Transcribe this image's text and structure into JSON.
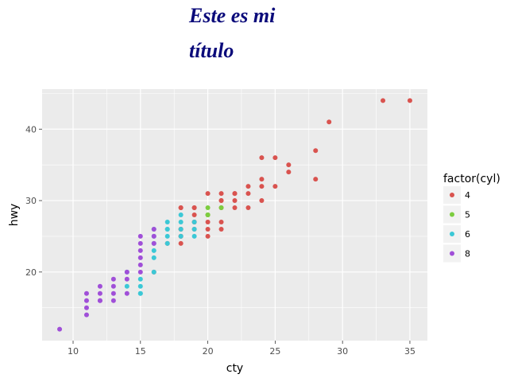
{
  "chart_data": {
    "type": "scatter",
    "title_lines": [
      "Este es mi",
      "título"
    ],
    "xlabel": "cty",
    "ylabel": "hwy",
    "xlim": [
      7.7,
      36.3
    ],
    "ylim": [
      10.4,
      45.6
    ],
    "xticks": [
      10,
      15,
      20,
      25,
      30,
      35
    ],
    "yticks": [
      20,
      30,
      40
    ],
    "grid": true,
    "legend": {
      "title": "factor(cyl)",
      "position": "right"
    },
    "series": [
      {
        "name": "4",
        "color": "#d9534f",
        "points": [
          [
            18,
            29
          ],
          [
            21,
            29
          ],
          [
            20,
            31
          ],
          [
            21,
            30
          ],
          [
            18,
            26
          ],
          [
            18,
            25
          ],
          [
            19,
            26
          ],
          [
            20,
            28
          ],
          [
            19,
            27
          ],
          [
            18,
            24
          ],
          [
            17,
            24
          ],
          [
            18,
            26
          ],
          [
            22,
            29
          ],
          [
            24,
            33
          ],
          [
            24,
            32
          ],
          [
            22,
            31
          ],
          [
            19,
            27
          ],
          [
            18,
            29
          ],
          [
            21,
            30
          ],
          [
            20,
            26
          ],
          [
            19,
            29
          ],
          [
            21,
            31
          ],
          [
            22,
            31
          ],
          [
            18,
            25
          ],
          [
            19,
            29
          ],
          [
            21,
            27
          ],
          [
            21,
            26
          ],
          [
            23,
            29
          ],
          [
            23,
            31
          ],
          [
            24,
            30
          ],
          [
            22,
            30
          ],
          [
            23,
            32
          ],
          [
            24,
            36
          ],
          [
            25,
            36
          ],
          [
            28,
            37
          ],
          [
            29,
            41
          ],
          [
            26,
            35
          ],
          [
            26,
            34
          ],
          [
            25,
            32
          ],
          [
            28,
            33
          ],
          [
            33,
            44
          ],
          [
            35,
            44
          ],
          [
            20,
            25
          ],
          [
            20,
            27
          ],
          [
            19,
            28
          ],
          [
            16,
            20
          ]
        ]
      },
      {
        "name": "5",
        "color": "#7ccd3f",
        "points": [
          [
            20,
            29
          ],
          [
            20,
            28
          ],
          [
            21,
            29
          ],
          [
            20,
            28
          ]
        ]
      },
      {
        "name": "6",
        "color": "#3bc8d6",
        "points": [
          [
            16,
            26
          ],
          [
            18,
            26
          ],
          [
            18,
            28
          ],
          [
            17,
            25
          ],
          [
            17,
            24
          ],
          [
            16,
            25
          ],
          [
            16,
            24
          ],
          [
            16,
            22
          ],
          [
            15,
            17
          ],
          [
            15,
            19
          ],
          [
            16,
            23
          ],
          [
            17,
            27
          ],
          [
            18,
            27
          ],
          [
            19,
            26
          ],
          [
            18,
            25
          ],
          [
            17,
            26
          ],
          [
            16,
            20
          ],
          [
            14,
            18
          ],
          [
            14,
            20
          ],
          [
            15,
            18
          ],
          [
            19,
            25
          ],
          [
            19,
            27
          ],
          [
            17,
            26
          ],
          [
            15,
            17
          ]
        ]
      },
      {
        "name": "8",
        "color": "#a04fd8",
        "points": [
          [
            9,
            12
          ],
          [
            11,
            15
          ],
          [
            11,
            16
          ],
          [
            11,
            17
          ],
          [
            12,
            16
          ],
          [
            12,
            17
          ],
          [
            12,
            18
          ],
          [
            13,
            16
          ],
          [
            13,
            17
          ],
          [
            13,
            19
          ],
          [
            14,
            17
          ],
          [
            14,
            19
          ],
          [
            14,
            20
          ],
          [
            15,
            20
          ],
          [
            15,
            21
          ],
          [
            15,
            22
          ],
          [
            15,
            23
          ],
          [
            15,
            24
          ],
          [
            15,
            25
          ],
          [
            16,
            24
          ],
          [
            16,
            25
          ],
          [
            16,
            26
          ],
          [
            11,
            14
          ],
          [
            13,
            18
          ],
          [
            12,
            16
          ]
        ]
      }
    ]
  }
}
